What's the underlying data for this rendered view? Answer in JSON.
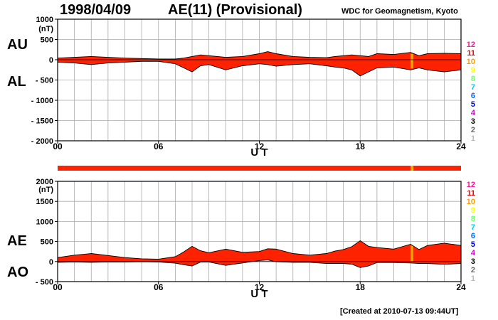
{
  "header": {
    "date": "1998/04/09",
    "title": "AE(11) (Provisional)",
    "source": "WDC for Geomagnetism, Kyoto"
  },
  "footer": {
    "created": "[Created at 2010-07-13 09:44UT]"
  },
  "colors": {
    "fill": "#ff2200",
    "highlight": "#ffa500",
    "grid": "#aaaaaa"
  },
  "level_scale": {
    "labels": [
      "12",
      "11",
      "10",
      "9",
      "8",
      "7",
      "6",
      "5",
      "4",
      "3",
      "2",
      "1"
    ],
    "colors": [
      "#ff1493",
      "#ee0000",
      "#ff9900",
      "#ffff00",
      "#66ff66",
      "#00ccff",
      "#0066ff",
      "#0000cc",
      "#cc00cc",
      "#000000",
      "#666666",
      "#bbbbbb"
    ]
  },
  "chart_data": [
    {
      "type": "area",
      "labels": {
        "upper": "AU",
        "lower": "AL"
      },
      "xlabel": "U T",
      "ylabel_unit": "(nT)",
      "xlim": [
        0,
        24
      ],
      "ylim": [
        -2000,
        1000
      ],
      "yticks": [
        {
          "v": 1000,
          "t": "1000"
        },
        {
          "v": 500,
          "t": "500"
        },
        {
          "v": 0,
          "t": "0"
        },
        {
          "v": -500,
          "t": "- 500"
        },
        {
          "v": -1000,
          "t": "- 1000"
        },
        {
          "v": -1500,
          "t": "- 1500"
        },
        {
          "v": -2000,
          "t": "- 2000"
        }
      ],
      "xticks": [
        {
          "v": 0,
          "t": "00"
        },
        {
          "v": 6,
          "t": "06"
        },
        {
          "v": 12,
          "t": "12"
        },
        {
          "v": 18,
          "t": "18"
        },
        {
          "v": 24,
          "t": "24"
        }
      ],
      "grid": true,
      "series": [
        {
          "name": "AU",
          "x": [
            0,
            1,
            2,
            3,
            4,
            5,
            6,
            7,
            7.5,
            8,
            8.5,
            9,
            10,
            11,
            12,
            12.5,
            13,
            14,
            15,
            16,
            16.5,
            17,
            17.5,
            18,
            18.5,
            19,
            20,
            21,
            21.5,
            22,
            23,
            24
          ],
          "values": [
            40,
            60,
            80,
            60,
            40,
            30,
            20,
            20,
            40,
            80,
            120,
            100,
            60,
            80,
            150,
            200,
            150,
            80,
            60,
            50,
            80,
            100,
            120,
            100,
            80,
            150,
            130,
            180,
            100,
            150,
            160,
            150
          ]
        },
        {
          "name": "AL",
          "x": [
            0,
            1,
            2,
            3,
            4,
            5,
            6,
            7,
            7.5,
            8,
            8.5,
            9,
            10,
            11,
            12,
            12.5,
            13,
            14,
            15,
            16,
            16.5,
            17,
            17.5,
            18,
            18.5,
            19,
            20,
            21,
            21.5,
            22,
            23,
            24
          ],
          "values": [
            -60,
            -80,
            -120,
            -80,
            -60,
            -40,
            -40,
            -100,
            -200,
            -300,
            -150,
            -120,
            -250,
            -150,
            -100,
            -120,
            -160,
            -120,
            -100,
            -150,
            -180,
            -200,
            -250,
            -400,
            -300,
            -200,
            -180,
            -250,
            -200,
            -250,
            -300,
            -250
          ]
        }
      ],
      "highlight_x": [
        [
          21.0,
          21.15
        ]
      ]
    },
    {
      "type": "area",
      "labels": {
        "upper": "AE",
        "lower": "AO"
      },
      "xlabel": "U T",
      "ylabel_unit": "(nT)",
      "xlim": [
        0,
        24
      ],
      "ylim": [
        -500,
        2000
      ],
      "yticks": [
        {
          "v": 2000,
          "t": "2000"
        },
        {
          "v": 1500,
          "t": "1500"
        },
        {
          "v": 1000,
          "t": "1000"
        },
        {
          "v": 500,
          "t": "500"
        },
        {
          "v": 0,
          "t": "0"
        },
        {
          "v": -500,
          "t": "- 500"
        }
      ],
      "xticks": [
        {
          "v": 0,
          "t": "00"
        },
        {
          "v": 6,
          "t": "06"
        },
        {
          "v": 12,
          "t": "12"
        },
        {
          "v": 18,
          "t": "18"
        },
        {
          "v": 24,
          "t": "24"
        }
      ],
      "grid": true,
      "series": [
        {
          "name": "AE",
          "x": [
            0,
            1,
            2,
            3,
            4,
            5,
            6,
            7,
            7.5,
            8,
            8.5,
            9,
            10,
            11,
            12,
            12.5,
            13,
            14,
            15,
            16,
            16.5,
            17,
            17.5,
            18,
            18.5,
            19,
            20,
            21,
            21.5,
            22,
            23,
            24
          ],
          "values": [
            100,
            160,
            200,
            150,
            100,
            70,
            60,
            120,
            240,
            380,
            270,
            220,
            310,
            230,
            250,
            320,
            310,
            200,
            160,
            200,
            260,
            300,
            370,
            520,
            380,
            350,
            310,
            430,
            300,
            400,
            460,
            400
          ]
        },
        {
          "name": "AO",
          "x": [
            0,
            1,
            2,
            3,
            4,
            5,
            6,
            7,
            7.5,
            8,
            8.5,
            9,
            10,
            11,
            12,
            12.5,
            13,
            14,
            15,
            16,
            16.5,
            17,
            17.5,
            18,
            18.5,
            19,
            20,
            21,
            21.5,
            22,
            23,
            24
          ],
          "values": [
            -20,
            -10,
            -20,
            -10,
            -10,
            -5,
            -10,
            -40,
            -80,
            -110,
            -15,
            -10,
            -95,
            -35,
            25,
            40,
            -5,
            -20,
            -20,
            -50,
            -50,
            -50,
            -65,
            -150,
            -110,
            -25,
            -25,
            -35,
            -50,
            -50,
            -70,
            -50
          ]
        }
      ],
      "highlight_x": [
        [
          21.0,
          21.15
        ]
      ]
    }
  ]
}
